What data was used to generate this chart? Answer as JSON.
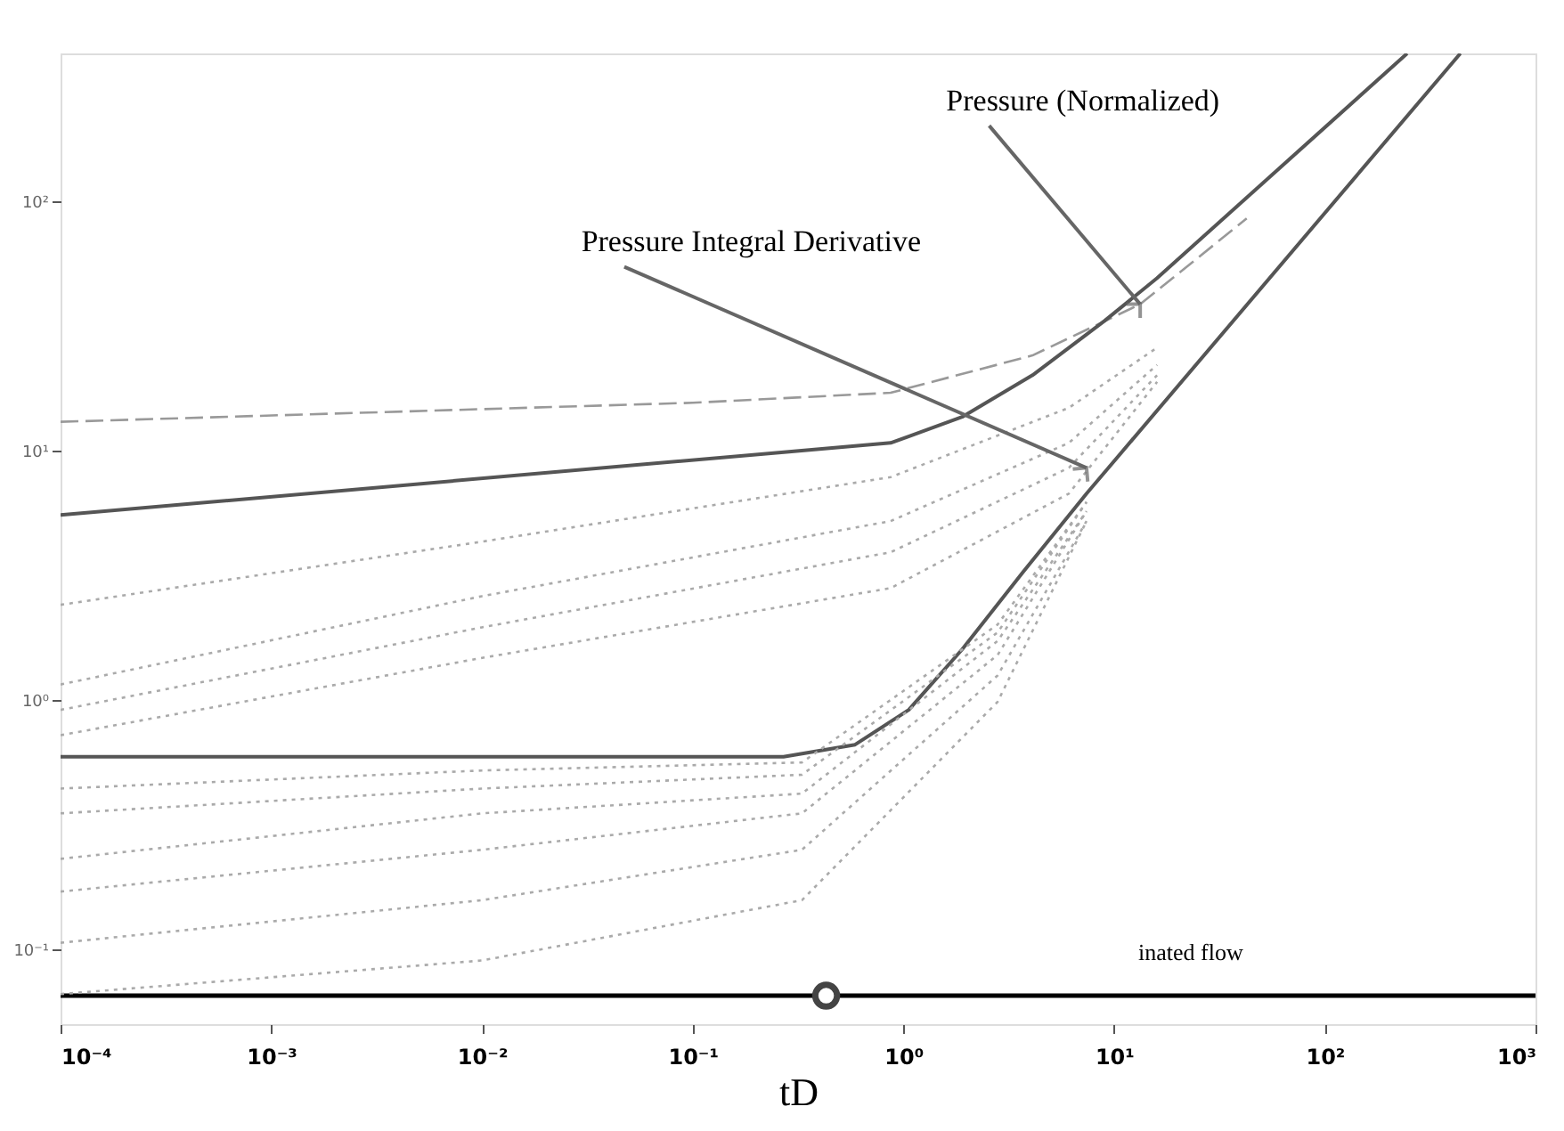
{
  "chart_data": {
    "type": "line",
    "xlabel": "tD",
    "xlim": [
      0.0001,
      1000
    ],
    "ylim": [
      0.05,
      390
    ],
    "xticks": [
      {
        "value": 0.0001,
        "label": "10⁻⁴"
      },
      {
        "value": 0.001,
        "label": "10⁻³"
      },
      {
        "value": 0.01,
        "label": "10⁻²"
      },
      {
        "value": 0.1,
        "label": "10⁻¹"
      },
      {
        "value": 1,
        "label": "10⁰"
      },
      {
        "value": 10,
        "label": "10¹"
      },
      {
        "value": 100,
        "label": "10²"
      },
      {
        "value": 1000,
        "label": "10³"
      }
    ],
    "yticks": [
      {
        "value": 0.1,
        "label": "10⁻¹"
      },
      {
        "value": 1,
        "label": "10⁰"
      },
      {
        "value": 10,
        "label": "10¹"
      },
      {
        "value": 100,
        "label": "10²"
      }
    ],
    "log": "xy",
    "grid": false,
    "legend": false,
    "series": [
      {
        "color": "#999999",
        "line_style": "dashed",
        "x": [
          0.0001,
          0.1,
          0.87,
          4.1,
          13.3,
          42.6
        ],
        "values": [
          13,
          15.5,
          17,
          24,
          38.5,
          85
        ]
      },
      {
        "color": "#555555",
        "line_style": "solid",
        "x": [
          0.0001,
          0.87,
          1.9,
          4.1,
          9.0,
          16,
          246
        ],
        "values": [
          5.5,
          10.7,
          13.6,
          20,
          33,
          49,
          390
        ]
      },
      {
        "color": "#555555",
        "line_style": "solid",
        "x": [
          0.0001,
          0.27,
          0.59,
          1.06,
          1.9,
          3.7,
          7.4,
          440
        ],
        "values": [
          0.59,
          0.59,
          0.66,
          0.91,
          1.59,
          3.25,
          6.7,
          390
        ]
      },
      {
        "color": "#aaaaaa",
        "line_style": "dotted",
        "x": [
          0.0001,
          0.01,
          0.87,
          6.1,
          16
        ],
        "values": [
          2.4,
          4.3,
          7.8,
          14.8,
          25.8
        ]
      },
      {
        "color": "#aaaaaa",
        "line_style": "dotted",
        "x": [
          0.0001,
          0.01,
          0.87,
          6.1,
          16
        ],
        "values": [
          1.15,
          2.6,
          5.2,
          10.7,
          22
        ]
      },
      {
        "color": "#aaaaaa",
        "line_style": "dotted",
        "x": [
          0.0001,
          0.01,
          0.87,
          6.1,
          16
        ],
        "values": [
          0.91,
          1.95,
          3.9,
          8.5,
          20
        ]
      },
      {
        "color": "#aaaaaa",
        "line_style": "dotted",
        "x": [
          0.0001,
          0.01,
          0.87,
          6.1,
          16
        ],
        "values": [
          0.72,
          1.47,
          2.8,
          6.7,
          18.8
        ]
      },
      {
        "color": "#aaaaaa",
        "line_style": "dotted",
        "x": [
          0.0001,
          0.01,
          0.33,
          2.8,
          7.4
        ],
        "values": [
          0.44,
          0.52,
          0.56,
          2.0,
          6.2
        ]
      },
      {
        "color": "#aaaaaa",
        "line_style": "dotted",
        "x": [
          0.0001,
          0.01,
          0.33,
          2.8,
          7.4
        ],
        "values": [
          0.35,
          0.44,
          0.5,
          1.86,
          6.2
        ]
      },
      {
        "color": "#aaaaaa",
        "line_style": "dotted",
        "x": [
          0.0001,
          0.01,
          0.33,
          2.8,
          7.4
        ],
        "values": [
          0.23,
          0.35,
          0.42,
          1.72,
          5.7
        ]
      },
      {
        "color": "#aaaaaa",
        "line_style": "dotted",
        "x": [
          0.0001,
          0.01,
          0.33,
          2.8,
          7.4
        ],
        "values": [
          0.17,
          0.25,
          0.35,
          1.51,
          5.7
        ]
      },
      {
        "color": "#aaaaaa",
        "line_style": "dotted",
        "x": [
          0.0001,
          0.01,
          0.33,
          2.8,
          7.4
        ],
        "values": [
          0.106,
          0.157,
          0.25,
          1.25,
          5.2
        ]
      },
      {
        "color": "#aaaaaa",
        "line_style": "dotted",
        "x": [
          0.0001,
          0.01,
          0.33,
          2.8,
          7.4
        ],
        "values": [
          0.066,
          0.09,
          0.157,
          0.98,
          5.2
        ]
      },
      {
        "type": "scatter",
        "color": "#444444",
        "marker": "circle",
        "x": [
          0.43
        ],
        "values": [
          0.065
        ]
      }
    ],
    "ref_lines": [
      {
        "axis": "y",
        "value": 0.065,
        "color": "#000000"
      }
    ],
    "annotations": [
      {
        "text": "Pressure (Normalized)",
        "x": 13.3,
        "y": 38.5
      },
      {
        "text": "Pressure Integral Derivative",
        "x": 7.4,
        "y": 8.5
      },
      "inated flow"
    ]
  }
}
